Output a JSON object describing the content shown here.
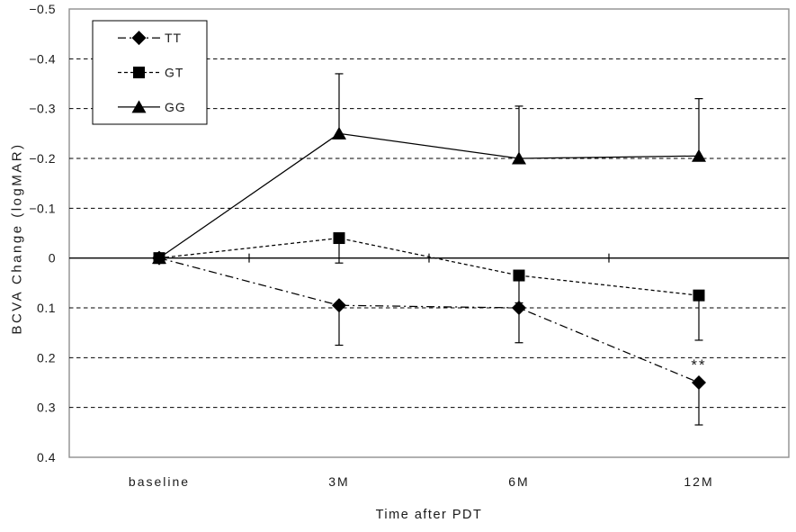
{
  "chart_data": {
    "type": "line",
    "title": "",
    "xlabel": "Time after PDT",
    "ylabel": "BCVA Change (logMAR)",
    "categories": [
      "baseline",
      "3M",
      "6M",
      "12M"
    ],
    "y_axis": {
      "min": -0.5,
      "max": 0.4,
      "step": 0.1,
      "inverted": true,
      "zero_line": true,
      "ticks": [
        {
          "v": -0.5,
          "label": "−0.5"
        },
        {
          "v": -0.4,
          "label": "−0.4"
        },
        {
          "v": -0.3,
          "label": "−0.3"
        },
        {
          "v": -0.2,
          "label": "−0.2"
        },
        {
          "v": -0.1,
          "label": "−0.1"
        },
        {
          "v": 0,
          "label": "0"
        },
        {
          "v": 0.1,
          "label": "0.1"
        },
        {
          "v": 0.2,
          "label": "0.2"
        },
        {
          "v": 0.3,
          "label": "0.3"
        },
        {
          "v": 0.4,
          "label": "0.4"
        }
      ]
    },
    "series": [
      {
        "name": "TT",
        "marker": "diamond",
        "line_style": "dashdot",
        "values": [
          0,
          0.095,
          0.1,
          0.25
        ],
        "error_to": [
          null,
          0.175,
          0.17,
          0.335
        ]
      },
      {
        "name": "GT",
        "marker": "square",
        "line_style": "dashed",
        "values": [
          0,
          -0.04,
          0.035,
          0.075
        ],
        "error_to": [
          null,
          0.01,
          0.09,
          0.165
        ]
      },
      {
        "name": "GG",
        "marker": "triangle",
        "line_style": "solid",
        "values": [
          0,
          -0.25,
          -0.2,
          -0.205
        ],
        "error_to": [
          null,
          -0.37,
          -0.305,
          -0.32
        ]
      }
    ],
    "annotations": [
      {
        "text": "**",
        "series": "TT",
        "category": "12M"
      }
    ],
    "legend": {
      "position": "top-left",
      "entries": [
        "TT",
        "GT",
        "GG"
      ]
    },
    "grid": "horizontal-dashed",
    "colors": {
      "data": "#000000",
      "border": "#8f8f8f",
      "background": "#ffffff",
      "text": "#1a1a1a"
    }
  }
}
